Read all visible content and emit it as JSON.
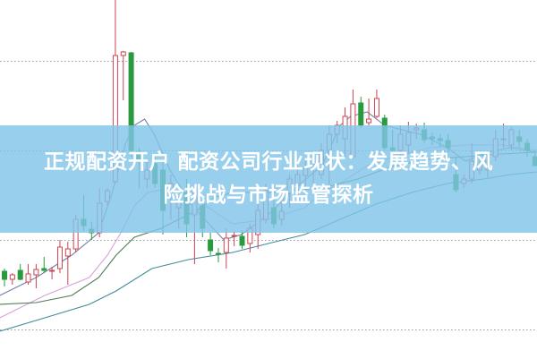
{
  "headline": {
    "line1": "正规配资开户 配资公司行业现状：发展趋势、风",
    "line2": "险挑战与市场监管探析"
  },
  "colors": {
    "up": "#d0434f",
    "down": "#2a9a3e",
    "grid": "#9a9a9a",
    "banner": "#80c4e8"
  },
  "chart_data": {
    "type": "candlestick",
    "title": "",
    "xlabel": "",
    "ylabel": "",
    "ylim": [
      0,
      400
    ],
    "grid": true,
    "grid_levels": [
      332,
      232,
      132,
      32
    ],
    "candles_ohlc": [
      [
        97,
        100,
        80,
        88
      ],
      [
        88,
        95,
        82,
        93
      ],
      [
        98,
        105,
        87,
        88
      ],
      [
        85,
        105,
        82,
        94
      ],
      [
        93,
        105,
        78,
        99
      ],
      [
        100,
        113,
        95,
        98
      ],
      [
        97,
        102,
        88,
        98
      ],
      [
        100,
        132,
        95,
        124
      ],
      [
        114,
        130,
        82,
        122
      ],
      [
        122,
        160,
        118,
        155
      ],
      [
        155,
        182,
        142,
        148
      ],
      [
        144,
        152,
        132,
        140
      ],
      [
        140,
        190,
        135,
        173
      ],
      [
        175,
        190,
        170,
        187
      ],
      [
        197,
        400,
        195,
        338
      ],
      [
        338,
        343,
        288,
        342
      ],
      [
        341,
        342,
        225,
        232
      ],
      [
        230,
        235,
        190,
        220
      ],
      [
        200,
        220,
        190,
        210
      ],
      [
        217,
        225,
        190,
        195
      ],
      [
        210,
        220,
        138,
        165
      ],
      [
        185,
        205,
        155,
        195
      ],
      [
        168,
        180,
        145,
        175
      ],
      [
        185,
        200,
        135,
        150
      ],
      [
        160,
        195,
        105,
        190
      ],
      [
        170,
        175,
        135,
        145
      ],
      [
        132,
        140,
        115,
        120
      ],
      [
        117,
        123,
        107,
        116
      ],
      [
        118,
        145,
        100,
        134
      ],
      [
        136,
        142,
        125,
        137
      ],
      [
        136,
        142,
        122,
        126
      ],
      [
        128,
        150,
        118,
        145
      ],
      [
        138,
        175,
        122,
        165
      ],
      [
        155,
        195,
        150,
        187
      ],
      [
        168,
        178,
        145,
        150
      ],
      [
        155,
        175,
        148,
        164
      ],
      [
        184,
        205,
        168,
        200
      ],
      [
        193,
        215,
        180,
        205
      ],
      [
        204,
        220,
        190,
        212
      ],
      [
        214,
        220,
        195,
        217
      ],
      [
        205,
        240,
        200,
        232
      ],
      [
        232,
        260,
        185,
        250
      ],
      [
        250,
        265,
        240,
        260
      ],
      [
        245,
        280,
        225,
        270
      ],
      [
        225,
        300,
        222,
        284
      ],
      [
        285,
        292,
        257,
        260
      ],
      [
        263,
        290,
        260,
        267
      ],
      [
        270,
        300,
        268,
        290
      ],
      [
        268,
        272,
        232,
        235
      ],
      [
        235,
        255,
        228,
        232
      ],
      [
        232,
        260,
        222,
        250
      ],
      [
        238,
        264,
        228,
        252
      ],
      [
        255,
        262,
        245,
        257
      ],
      [
        255,
        263,
        240,
        244
      ],
      [
        247,
        252,
        238,
        245
      ],
      [
        245,
        250,
        235,
        243
      ],
      [
        243,
        250,
        220,
        235
      ],
      [
        205,
        225,
        185,
        188
      ],
      [
        195,
        205,
        190,
        200
      ],
      [
        200,
        240,
        195,
        220
      ],
      [
        210,
        225,
        205,
        215
      ],
      [
        210,
        230,
        202,
        220
      ],
      [
        225,
        255,
        220,
        245
      ],
      [
        245,
        262,
        235,
        245
      ],
      [
        238,
        258,
        232,
        255
      ],
      [
        247,
        255,
        235,
        242
      ],
      [
        240,
        245,
        225,
        232
      ],
      [
        225,
        232,
        215,
        215
      ]
    ],
    "moving_averages": [
      {
        "color": "#6f83a6",
        "points": [
          [
            -0.6,
            70
          ],
          [
            4,
            90
          ],
          [
            8.5,
            115
          ],
          [
            11.9,
            140
          ],
          [
            13.6,
            185
          ],
          [
            15.3,
            240
          ],
          [
            16.4,
            260
          ],
          [
            17.7,
            267
          ],
          [
            18.9,
            250
          ],
          [
            20.9,
            210
          ],
          [
            23.7,
            170
          ],
          [
            27.7,
            132
          ],
          [
            29.9,
            138
          ],
          [
            33.3,
            160
          ],
          [
            36.7,
            190
          ],
          [
            40.1,
            215
          ],
          [
            42.4,
            260
          ],
          [
            43.7,
            270
          ],
          [
            45.8,
            275
          ],
          [
            48,
            260
          ],
          [
            52.5,
            250
          ],
          [
            55.9,
            235
          ],
          [
            58.2,
            220
          ],
          [
            61,
            230
          ],
          [
            63.8,
            235
          ],
          [
            67.2,
            230
          ]
        ]
      },
      {
        "color": "#d9a3d9",
        "points": [
          [
            -0.6,
            45
          ],
          [
            5.1,
            70
          ],
          [
            10.7,
            90
          ],
          [
            13,
            115
          ],
          [
            14.7,
            140
          ],
          [
            16.4,
            170
          ],
          [
            18.1,
            185
          ],
          [
            20.9,
            190
          ],
          [
            25.4,
            170
          ],
          [
            28.8,
            150
          ],
          [
            33.3,
            155
          ],
          [
            37.9,
            168
          ],
          [
            40.1,
            185
          ],
          [
            42.4,
            195
          ],
          [
            45.8,
            215
          ],
          [
            49.2,
            225
          ],
          [
            53.7,
            235
          ],
          [
            58.2,
            238
          ],
          [
            62.7,
            238
          ],
          [
            67.2,
            232
          ]
        ]
      },
      {
        "color": "#4f7d55",
        "points": [
          [
            -0.6,
            60
          ],
          [
            4,
            62
          ],
          [
            8.5,
            70
          ],
          [
            11.9,
            90
          ],
          [
            14.1,
            115
          ],
          [
            16.4,
            135
          ],
          [
            19.8,
            145
          ],
          [
            22,
            155
          ],
          [
            24.3,
            165
          ],
          [
            26.6,
            180
          ],
          [
            28.8,
            185
          ],
          [
            33.3,
            185
          ],
          [
            40.1,
            190
          ],
          [
            44.6,
            200
          ],
          [
            49.2,
            215
          ],
          [
            53.7,
            222
          ],
          [
            58.2,
            225
          ],
          [
            62.7,
            228
          ],
          [
            67.2,
            230
          ]
        ]
      },
      {
        "color": "#3f8c9c",
        "points": [
          [
            -0.6,
            30
          ],
          [
            5.1,
            45
          ],
          [
            10.7,
            60
          ],
          [
            14.1,
            75
          ],
          [
            18.6,
            100
          ],
          [
            23.2,
            110
          ],
          [
            28.8,
            118
          ],
          [
            33.3,
            128
          ],
          [
            37.9,
            138
          ],
          [
            42.4,
            155
          ],
          [
            46.9,
            172
          ],
          [
            51.4,
            185
          ],
          [
            55.9,
            195
          ],
          [
            60.5,
            200
          ],
          [
            63.8,
            205
          ],
          [
            67.2,
            208
          ]
        ]
      }
    ]
  }
}
